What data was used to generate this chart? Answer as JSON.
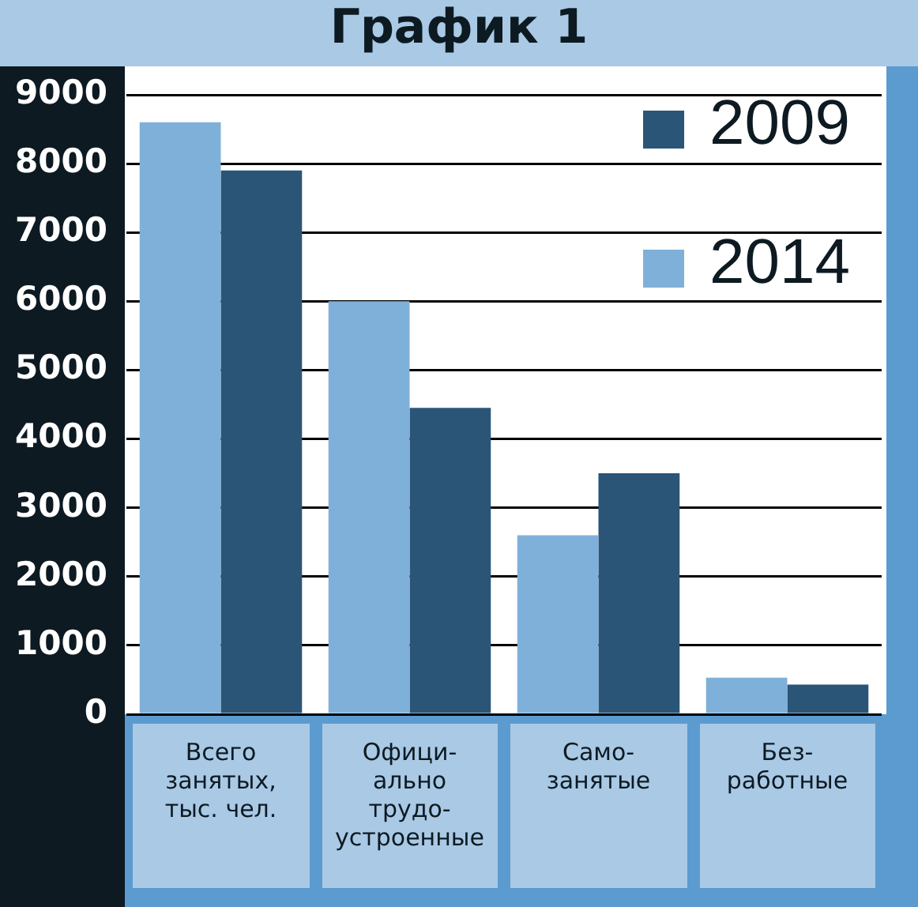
{
  "chart_data": {
    "type": "bar",
    "title": "График 1",
    "categories": [
      "Всего\nзанятых,\nтыс. чел.",
      "Офици-\nально\nтрудо-\nустроенные",
      "Само-\nзанятые",
      "Без-\nработные"
    ],
    "series": [
      {
        "name": "2014",
        "color": "#7fb0d9",
        "values": [
          8600,
          6000,
          2600,
          530
        ]
      },
      {
        "name": "2009",
        "color": "#2b5577",
        "values": [
          7900,
          4450,
          3500,
          430
        ]
      }
    ],
    "ylim": [
      0,
      9000
    ],
    "yticks": [
      0,
      1000,
      2000,
      3000,
      4000,
      5000,
      6000,
      7000,
      8000,
      9000
    ],
    "grid": "y",
    "legend": "top right"
  }
}
